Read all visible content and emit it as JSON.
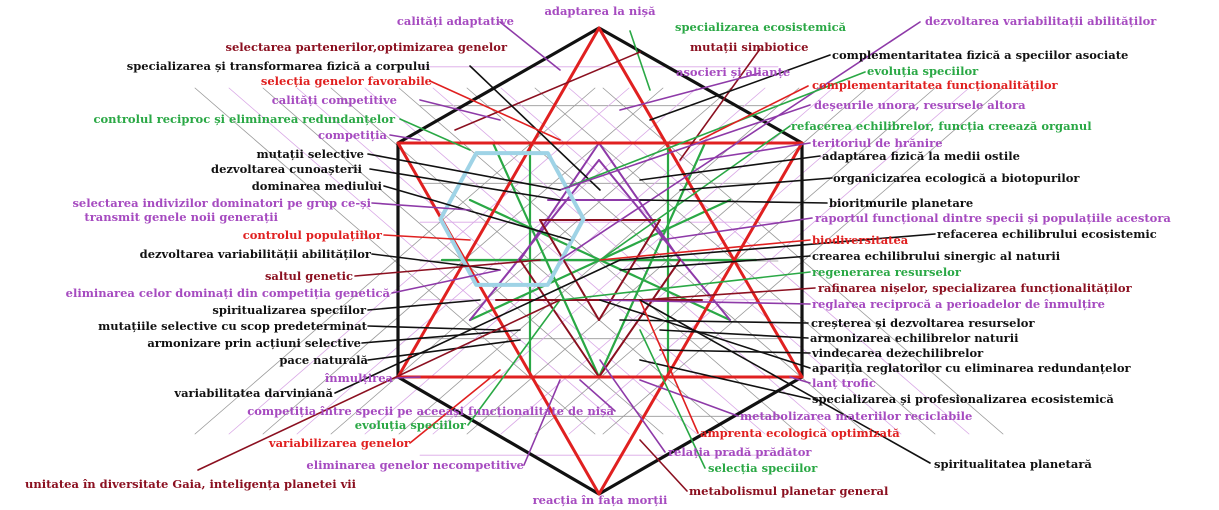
{
  "labels": {
    "adaptarea_nisa": "adaptarea la nișă",
    "calitati_adaptative": "calități adaptative",
    "specializarea_ecosistemica": "specializarea ecosistemică",
    "dezvoltarea_variabilitatii_top": "dezvoltarea variabilitații abilităților",
    "selectarea_partenerilor": "selectarea partenerilor,optimizarea genelor",
    "mutatii_simbiotice": "mutații simbiotice",
    "specializarea_transformarea": "specializarea și transformarea fizică a corpului",
    "complementaritatea_fizica": "complementaritatea fizică a speciilor asociate",
    "asocieri_aliante": "asocieri și alianțe",
    "selectia_genelor": "selecția genelor favorabile",
    "evolutia_speciilor_top": "evoluția speciilor",
    "complementaritatea_functionalitatilor": "complementaritatea funcționalităților",
    "calitati_competitive": "calități competitive",
    "deseurile": "deșeurile unora, resursele altora",
    "controlul_reciproc": "controlul reciproc și eliminarea redundanțelor",
    "refacerea_echilibrelor": "refacerea echilibrelor, funcția creează organul",
    "competitia": "competiția",
    "teritoriul_hranire": "teritoriul de hrănire",
    "mutatii_selective": "mutații selective",
    "adaptarea_fizica": "adaptarea fizică la medii ostile",
    "dezvoltarea_cunoasterii": "dezvoltarea cunoașterii",
    "organicizarea": "organicizarea ecologică a biotopurilor",
    "dominarea_mediului": "dominarea mediului",
    "bioritmurile": "bioritmurile planetare",
    "selectarea_indivizilor": "selectarea indivizilor dominatori pe grup ce-și",
    "raportul_functional": "raportul funcțional dintre specii și populațiile acestora",
    "transmit_gene": "transmit genele noii generații",
    "refacerea_echilibrului": "refacerea echilibrului ecosistemic",
    "controlul_populatiilor": "controlul populațiilor",
    "biodiversitatea": "biodiversitatea",
    "dezvoltarea_variabilitatii": "dezvoltarea variabilității abilităților",
    "crearea_echilibrului": "crearea echilibrului sinergic al naturii",
    "regenerarea_resurselor": "regenerarea resurselor",
    "saltul_genetic": "saltul genetic",
    "rafinarea_niselor": "rafinarea nișelor, specializarea funcționalităților",
    "eliminarea_celor_dominati": "eliminarea celor dominați din competiția genetică",
    "reglarea_reciproca": "reglarea reciprocă a perioadelor de înmulțire",
    "spiritualizarea_speciilor": "spiritualizarea speciilor",
    "cresterea_dezvoltarea": "creșterea și dezvoltarea resurselor",
    "mutatiile_selective_scop": "mutațiile selective cu scop predeterminat",
    "armonizarea_echilibrelor": "armonizarea echilibrelor naturii",
    "armonizare_actiuni": "armonizare prin acțiuni selective",
    "vindecarea": "vindecarea dezechilibrelor",
    "pace_naturala": "pace naturală",
    "aparitia_reglatorilor": "apariția reglatorilor cu eliminarea redundanțelor",
    "inmultirea": "înmulțirea",
    "lant_trofic": "lanț trofic",
    "variabilitatea_darviniana": "variabilitatea darviniană",
    "specializarea_profesionalizarea": "specializarea și profesionalizarea ecosistemică",
    "competitia_intre_specii": "competiția între specii pe aceeași funcționalitate de nișă",
    "metabolizarea": "metabolizarea materiilor reciclabile",
    "evolutia_speciilor_bottom": "evoluția speciilor",
    "amprenta_ecologica": "amprenta ecologică optimizată",
    "variabilizarea_genelor": "variabilizarea genelor",
    "relatia_prada": "relația pradă prădător",
    "eliminarea_genelor": "eliminarea genelor necompetitive",
    "selectia_speciilor": "selecția speciilor",
    "spiritualitatea_planetara": "spiritualitatea planetară",
    "unitatea_diversitate": "unitatea în diversitate Gaia, inteligența planetei vii",
    "metabolismul_planetar": "metabolismul planetar general",
    "reactia_moartii": "reacția în fața morții"
  },
  "colors": {
    "black": "#111111",
    "red": "#e02020",
    "dark_red": "#8b1020",
    "green": "#2aa845",
    "purple": "#8e3aa8",
    "light_purple": "#d9a8e6",
    "light_blue": "#9fd3e6",
    "grey": "#999999"
  }
}
